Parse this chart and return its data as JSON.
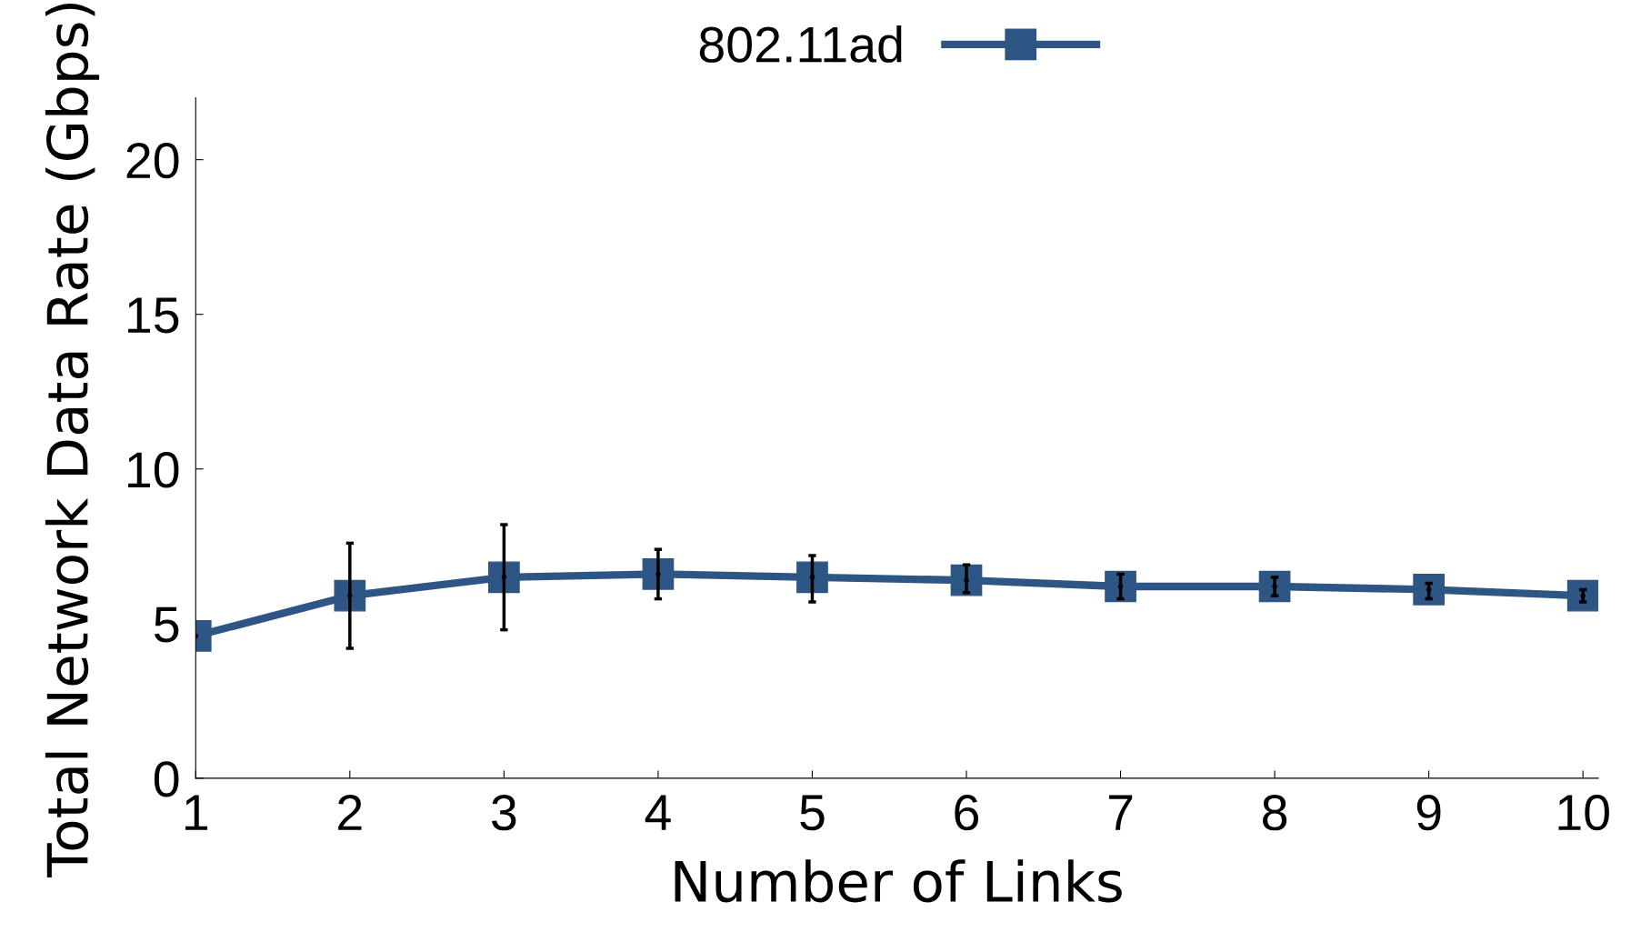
{
  "chart_data": {
    "type": "line",
    "xlabel": "Number of Links",
    "ylabel": "Total Network Data Rate (Gbps)",
    "x": [
      1,
      2,
      3,
      4,
      5,
      6,
      7,
      8,
      9,
      10
    ],
    "series": [
      {
        "name": "802.11ad",
        "color": "#2e5684",
        "values": [
          4.6,
          5.9,
          6.5,
          6.6,
          6.5,
          6.4,
          6.2,
          6.2,
          6.1,
          5.9
        ],
        "errors": [
          null,
          [
            4.2,
            7.6
          ],
          [
            4.8,
            8.2
          ],
          [
            5.8,
            7.4
          ],
          [
            5.7,
            7.2
          ],
          [
            6.0,
            6.9
          ],
          [
            5.8,
            6.6
          ],
          [
            5.9,
            6.5
          ],
          [
            5.8,
            6.3
          ],
          [
            5.7,
            6.1
          ]
        ]
      }
    ],
    "xlim": [
      1,
      10.1
    ],
    "xticks": [
      1,
      2,
      3,
      4,
      5,
      6,
      7,
      8,
      9,
      10
    ],
    "ylim": [
      0,
      22
    ],
    "yticks": [
      0,
      5,
      10,
      15,
      20
    ],
    "marker": "square",
    "line_style": "solid",
    "legend": "top",
    "grid": false
  }
}
